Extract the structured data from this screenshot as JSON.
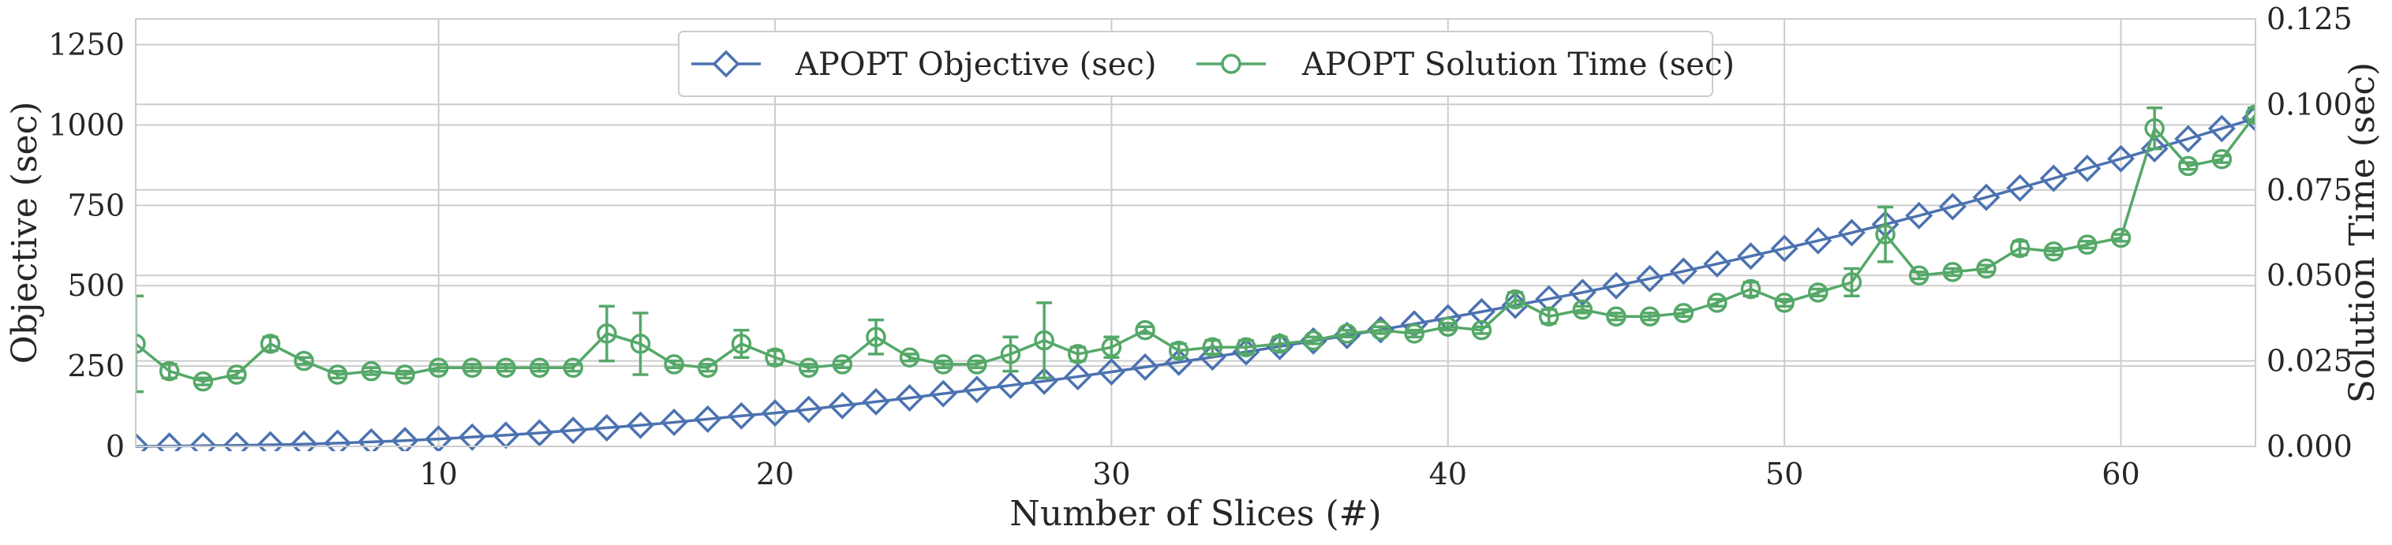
{
  "chart_data": {
    "type": "line",
    "xlabel": "Number of Slices (#)",
    "ylabel_left": "Objective (sec)",
    "ylabel_right": "Solution Time (sec)",
    "xlim": [
      1,
      64
    ],
    "ylim_left": [
      0,
      1330
    ],
    "ylim_right": [
      0,
      0.125
    ],
    "x_ticks": [
      10,
      20,
      30,
      40,
      50,
      60
    ],
    "y_ticks_left": [
      "0",
      "250",
      "500",
      "750",
      "1000",
      "1250"
    ],
    "y_ticks_right": [
      "0.000",
      "0.025",
      "0.050",
      "0.075",
      "0.100",
      "0.125"
    ],
    "grid": true,
    "legend_position": "top-center",
    "colors": {
      "objective": "#4c72b0",
      "solution_time": "#55a868"
    },
    "x": [
      1,
      2,
      3,
      4,
      5,
      6,
      7,
      8,
      9,
      10,
      11,
      12,
      13,
      14,
      15,
      16,
      17,
      18,
      19,
      20,
      21,
      22,
      23,
      24,
      25,
      26,
      27,
      28,
      29,
      30,
      31,
      32,
      33,
      34,
      35,
      36,
      37,
      38,
      39,
      40,
      41,
      42,
      43,
      44,
      45,
      46,
      47,
      48,
      49,
      50,
      51,
      52,
      53,
      54,
      55,
      56,
      57,
      58,
      59,
      60,
      61,
      62,
      63,
      64
    ],
    "series": [
      {
        "name": "APOPT Objective (sec)",
        "axis": "left",
        "marker": "diamond",
        "values": [
          0,
          1,
          2,
          3,
          5,
          7,
          10,
          14,
          18,
          23,
          29,
          35,
          42,
          50,
          58,
          66,
          75,
          85,
          95,
          104,
          115,
          127,
          139,
          151,
          164,
          177,
          190,
          203,
          217,
          232,
          247,
          262,
          278,
          294,
          311,
          328,
          345,
          363,
          381,
          400,
          419,
          439,
          459,
          479,
          500,
          522,
          545,
          568,
          592,
          616,
          640,
          665,
          691,
          718,
          746,
          775,
          804,
          834,
          865,
          895,
          926,
          957,
          989,
          1021
        ]
      },
      {
        "name": "APOPT Solution Time (sec)",
        "axis": "right",
        "marker": "circle",
        "values": [
          0.03,
          0.022,
          0.019,
          0.021,
          0.03,
          0.025,
          0.021,
          0.022,
          0.021,
          0.023,
          0.023,
          0.023,
          0.023,
          0.023,
          0.033,
          0.03,
          0.024,
          0.023,
          0.03,
          0.026,
          0.023,
          0.024,
          0.032,
          0.026,
          0.024,
          0.024,
          0.027,
          0.031,
          0.027,
          0.029,
          0.034,
          0.028,
          0.029,
          0.029,
          0.03,
          0.031,
          0.033,
          0.034,
          0.033,
          0.035,
          0.034,
          0.043,
          0.038,
          0.04,
          0.038,
          0.038,
          0.039,
          0.042,
          0.046,
          0.042,
          0.045,
          0.048,
          0.062,
          0.05,
          0.051,
          0.052,
          0.058,
          0.057,
          0.059,
          0.061,
          0.093,
          0.082,
          0.084,
          0.097
        ],
        "error": [
          0.014,
          0.002,
          0.001,
          0.001,
          0.002,
          0.001,
          0.001,
          0.001,
          0.001,
          0.001,
          0.001,
          0.001,
          0.001,
          0.001,
          0.008,
          0.009,
          0.001,
          0.001,
          0.004,
          0.002,
          0.001,
          0.001,
          0.005,
          0.001,
          0.001,
          0.001,
          0.005,
          0.011,
          0.002,
          0.003,
          0.001,
          0.002,
          0.002,
          0.002,
          0.002,
          0.001,
          0.001,
          0.001,
          0.001,
          0.001,
          0.001,
          0.002,
          0.002,
          0.001,
          0.001,
          0.001,
          0.001,
          0.001,
          0.002,
          0.001,
          0.001,
          0.004,
          0.008,
          0.001,
          0.001,
          0.001,
          0.002,
          0.001,
          0.001,
          0.001,
          0.006,
          0.001,
          0.001,
          0.002
        ]
      }
    ]
  }
}
